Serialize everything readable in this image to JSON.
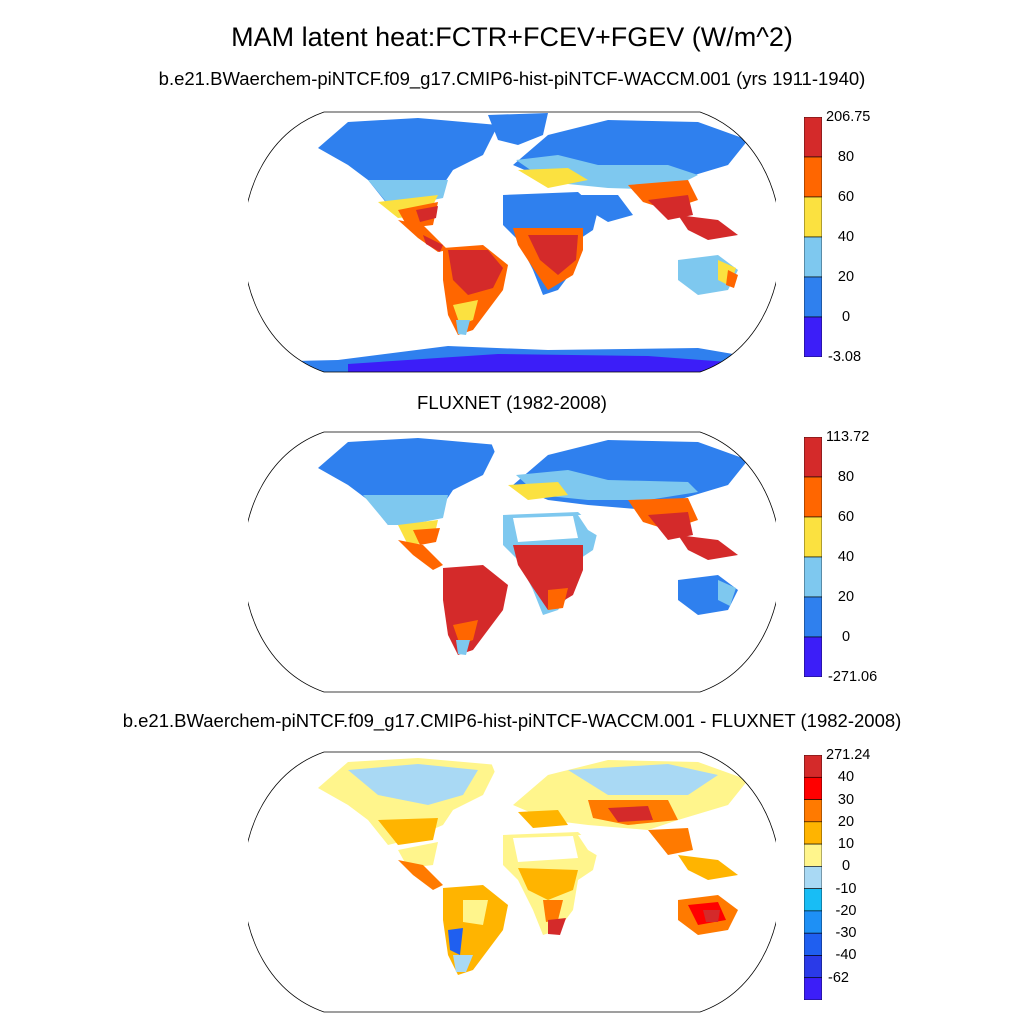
{
  "figure": {
    "title": "MAM latent heat:FCTR+FCEV+FGEV (W/m^2)",
    "panels": [
      {
        "id": "model",
        "title": "b.e21.BWaerchem-piNTCF.f09_g17.CMIP6-hist-piNTCF-WACCM.001 (yrs 1911-1940)",
        "colorbar": {
          "labels": [
            "206.75",
            "80",
            "60",
            "40",
            "20",
            "0",
            "-3.08"
          ],
          "colors": [
            "#d42a2a",
            "#ff6600",
            "#fbe140",
            "#7ec8ef",
            "#2f80ee",
            "#3c1ef8"
          ]
        }
      },
      {
        "id": "obs",
        "title": "FLUXNET (1982-2008)",
        "colorbar": {
          "labels": [
            "113.72",
            "80",
            "60",
            "40",
            "20",
            "0",
            "-271.06"
          ],
          "colors": [
            "#d42a2a",
            "#ff6600",
            "#fbe140",
            "#7ec8ef",
            "#2f80ee",
            "#3c1ef8"
          ]
        }
      },
      {
        "id": "diff",
        "title": "b.e21.BWaerchem-piNTCF.f09_g17.CMIP6-hist-piNTCF-WACCM.001 - FLUXNET (1982-2008)",
        "colorbar": {
          "labels": [
            "271.24",
            "40",
            "30",
            "20",
            "10",
            "0",
            "-10",
            "-20",
            "-30",
            "-40",
            "-62"
          ],
          "colors": [
            "#d42a2a",
            "#ff0000",
            "#ff7a00",
            "#ffb400",
            "#fff58c",
            "#a9d9f4",
            "#18bdf5",
            "#1e90f5",
            "#1f5ff0",
            "#2a3ae8",
            "#3c1ef8"
          ]
        }
      }
    ]
  }
}
